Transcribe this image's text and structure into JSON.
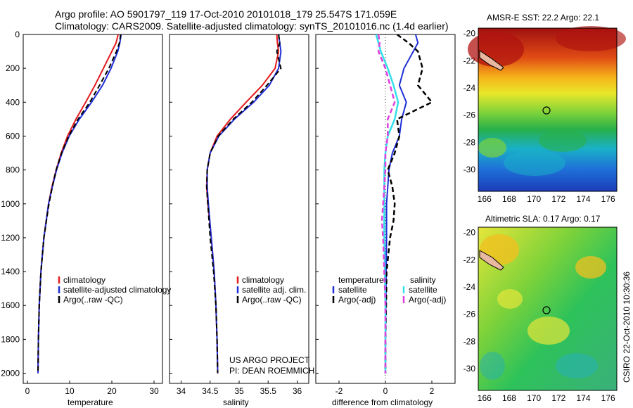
{
  "header": {
    "line1": "Argo profile: AO 5901797_119 17-Oct-2010 20101018_179 25.547S 171.059E",
    "line2": "Climatology: CARS2009. Satellite-adjusted climatology: synTS_20101016.nc (1.4d earlier)"
  },
  "credit": {
    "project": "US ARGO PROJECT",
    "pi": "PI: DEAN ROEMMICH",
    "side": "CSIRO 22-Oct-2010 10:30:36"
  },
  "colors": {
    "climatology": "#e31a1c",
    "satellite": "#1f2fd6",
    "argo": "#000000",
    "satellite_salinity": "#33e0e8",
    "argo_salinity": "#e040e0",
    "land": "#e8b8a0"
  },
  "chart_data": [
    {
      "type": "line",
      "title": "",
      "xlabel": "temperature",
      "ylabel": "",
      "xlim": [
        -1,
        32
      ],
      "ylim": [
        2060,
        0
      ],
      "xticks": [
        "0",
        "10",
        "20",
        "30"
      ],
      "yticks": [
        "0",
        "200",
        "400",
        "600",
        "800",
        "1000",
        "1200",
        "1400",
        "1600",
        "1800",
        "2000"
      ],
      "legend_position": "lower-center",
      "y": [
        0,
        50,
        100,
        200,
        300,
        400,
        500,
        600,
        700,
        800,
        900,
        1000,
        1200,
        1400,
        1600,
        1800,
        2000
      ],
      "series": [
        {
          "name": "climatology",
          "x": [
            21.5,
            21.0,
            20.0,
            18.0,
            16.0,
            13.8,
            11.5,
            9.5,
            8.0,
            6.8,
            5.8,
            5.0,
            3.9,
            3.2,
            2.8,
            2.6,
            2.5
          ]
        },
        {
          "name": "satellite-adjusted climatology",
          "x": [
            22.2,
            21.9,
            21.4,
            19.8,
            17.8,
            15.2,
            12.3,
            9.9,
            8.2,
            6.9,
            5.9,
            5.0,
            3.9,
            3.2,
            2.8,
            2.6,
            2.5
          ]
        },
        {
          "name": "Argo(..raw -QC)",
          "x": [
            22.1,
            21.8,
            21.1,
            19.3,
            17.1,
            14.8,
            12.0,
            9.8,
            8.1,
            6.8,
            5.9,
            5.1,
            3.9,
            3.2,
            2.8,
            2.6,
            2.5
          ]
        }
      ]
    },
    {
      "type": "line",
      "title": "",
      "xlabel": "salinity",
      "ylabel": "",
      "xlim": [
        33.8,
        36.2
      ],
      "ylim": [
        2060,
        0
      ],
      "xticks": [
        "34",
        "34.5",
        "35",
        "35.5",
        "36"
      ],
      "legend_position": "lower-center",
      "y": [
        0,
        50,
        100,
        200,
        300,
        400,
        500,
        600,
        700,
        800,
        900,
        1000,
        1200,
        1400,
        1600,
        1800,
        2000
      ],
      "series": [
        {
          "name": "climatology",
          "x": [
            35.65,
            35.66,
            35.68,
            35.62,
            35.4,
            35.12,
            34.85,
            34.62,
            34.5,
            34.45,
            34.44,
            34.46,
            34.52,
            34.57,
            34.6,
            34.62,
            34.63
          ]
        },
        {
          "name": "satellite adj. clim.",
          "x": [
            35.68,
            35.7,
            35.72,
            35.68,
            35.52,
            35.25,
            34.92,
            34.65,
            34.5,
            34.45,
            34.45,
            34.47,
            34.52,
            34.57,
            34.6,
            34.62,
            34.63
          ]
        },
        {
          "name": "Argo(..raw -QC)",
          "x": [
            35.68,
            35.7,
            35.65,
            35.72,
            35.48,
            35.22,
            34.9,
            34.64,
            34.5,
            34.45,
            34.44,
            34.46,
            34.5,
            34.56,
            34.6,
            34.62,
            34.63
          ]
        }
      ]
    },
    {
      "type": "line",
      "title": "",
      "xlabel": "difference from climatology",
      "ylabel": "",
      "xlim": [
        -3,
        3
      ],
      "ylim": [
        2060,
        0
      ],
      "xticks": [
        "-2",
        "0",
        "2"
      ],
      "legend_position": "lower-center",
      "legend_groups": [
        "temperature",
        "salinity"
      ],
      "y": [
        0,
        50,
        100,
        200,
        300,
        400,
        500,
        600,
        700,
        800,
        900,
        1000,
        1100,
        1200,
        1400,
        1600,
        1800,
        2000
      ],
      "series": [
        {
          "name": "satellite",
          "group": "temperature",
          "x": [
            1.3,
            1.4,
            1.2,
            0.8,
            0.6,
            0.9,
            0.7,
            0.6,
            0.3,
            0.15,
            0.1,
            0.05,
            0.05,
            0.05,
            0.03,
            0.02,
            0.0,
            0.0
          ]
        },
        {
          "name": "Argo(-adj)",
          "group": "temperature",
          "x": [
            0.5,
            1.0,
            1.4,
            1.6,
            1.4,
            2.0,
            0.5,
            0.6,
            0.4,
            0.1,
            0.3,
            0.4,
            0.35,
            0.2,
            0.05,
            0.03,
            0.0,
            0.0
          ]
        },
        {
          "name": "satellite",
          "group": "salinity",
          "x": [
            -0.4,
            -0.3,
            -0.2,
            0.1,
            0.35,
            0.55,
            0.4,
            0.1,
            0.0,
            -0.05,
            -0.05,
            -0.05,
            -0.05,
            -0.05,
            -0.02,
            0.0,
            0.0,
            0.0
          ]
        },
        {
          "name": "Argo(-adj)",
          "group": "salinity",
          "x": [
            -0.3,
            -0.25,
            -0.3,
            0.0,
            0.2,
            0.4,
            0.1,
            0.1,
            0.0,
            0.0,
            -0.05,
            -0.1,
            -0.15,
            -0.1,
            -0.05,
            0.0,
            0.0,
            0.0
          ]
        }
      ]
    },
    {
      "type": "heatmap",
      "title": "AMSR-E SST: 22.2 Argo: 22.1",
      "xlim": [
        165.5,
        176.7
      ],
      "ylim": [
        -31.6,
        -19.6
      ],
      "xticks": [
        "166",
        "168",
        "170",
        "172",
        "174",
        "176"
      ],
      "yticks": [
        "-20",
        "-22",
        "-24",
        "-26",
        "-28",
        "-30"
      ],
      "marker": {
        "lon": 171.059,
        "lat": -25.547
      }
    },
    {
      "type": "heatmap",
      "title": "Altimetric SLA: 0.17 Argo: 0.17",
      "xlim": [
        165.5,
        176.7
      ],
      "ylim": [
        -31.6,
        -19.6
      ],
      "xticks": [
        "166",
        "168",
        "170",
        "172",
        "174",
        "176"
      ],
      "yticks": [
        "-20",
        "-22",
        "-24",
        "-26",
        "-28",
        "-30"
      ],
      "marker": {
        "lon": 171.059,
        "lat": -25.547
      }
    }
  ]
}
